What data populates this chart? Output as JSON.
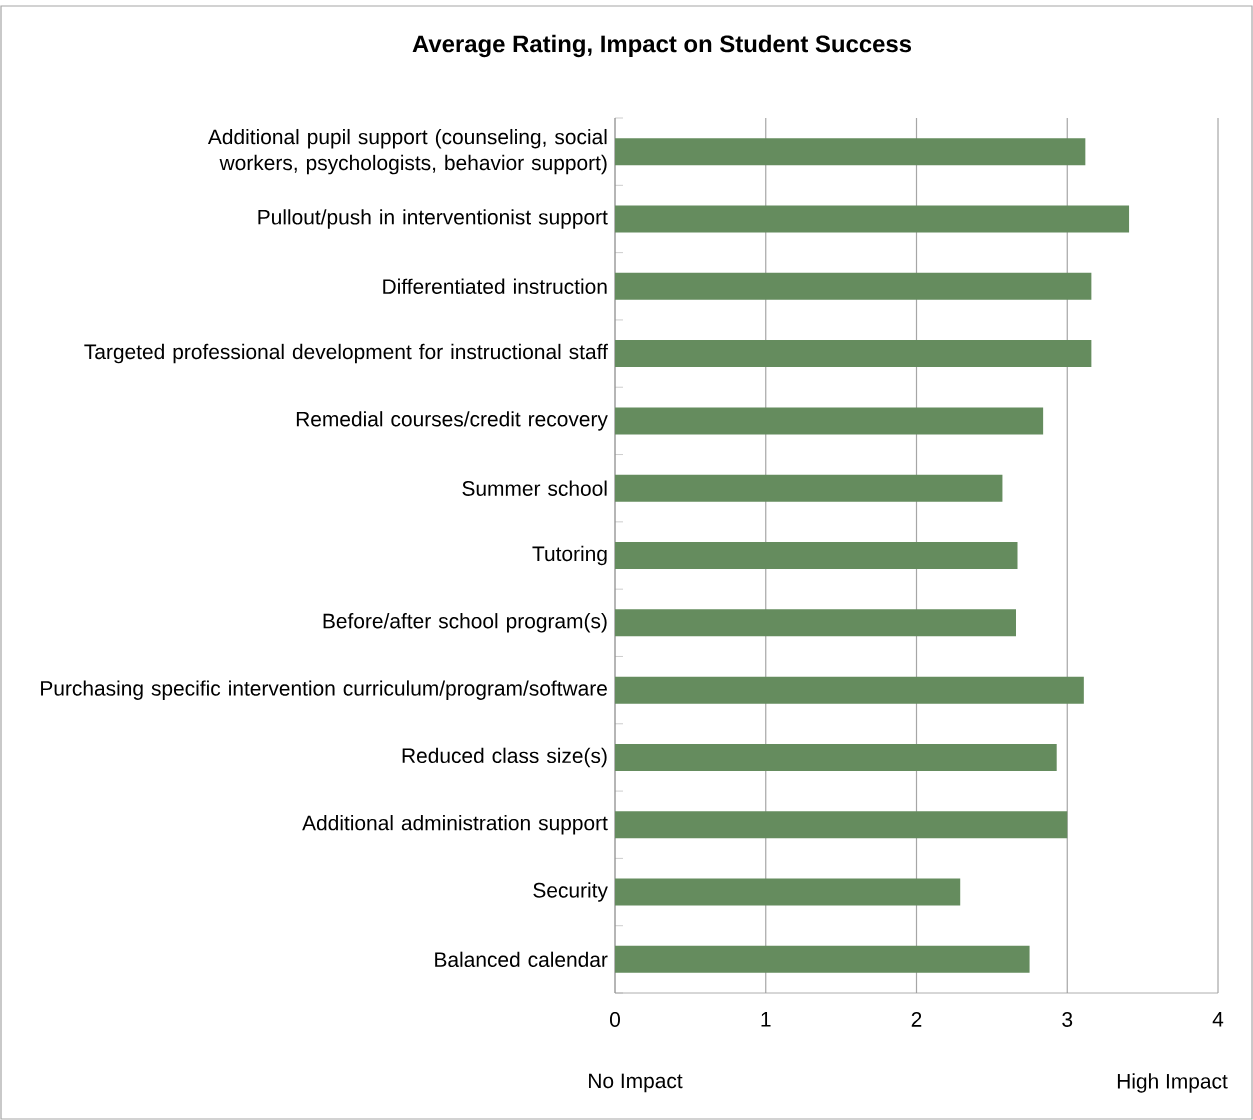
{
  "chart_data": {
    "type": "bar",
    "orientation": "horizontal",
    "title": "Average Rating, Impact on Student Success",
    "categories": [
      "Additional pupil support (counseling, social workers, psychologists, behavior support)",
      "Pullout/push in interventionist support",
      "Differentiated instruction",
      "Targeted professional development for instructional staff",
      "Remedial courses/credit recovery",
      "Summer school",
      "Tutoring",
      "Before/after school program(s)",
      "Purchasing specific intervention curriculum/program/software",
      "Reduced class size(s)",
      "Additional administration support",
      "Security",
      "Balanced calendar"
    ],
    "values": [
      3.12,
      3.41,
      3.16,
      3.16,
      2.84,
      2.57,
      2.67,
      2.66,
      3.11,
      2.93,
      3.0,
      2.29,
      2.75
    ],
    "color": "#658c5e",
    "xlim": [
      0,
      4
    ],
    "xticks": [
      0,
      1,
      2,
      3,
      4
    ],
    "grid": "x",
    "annotations": [
      "No Impact",
      "High Impact"
    ]
  }
}
